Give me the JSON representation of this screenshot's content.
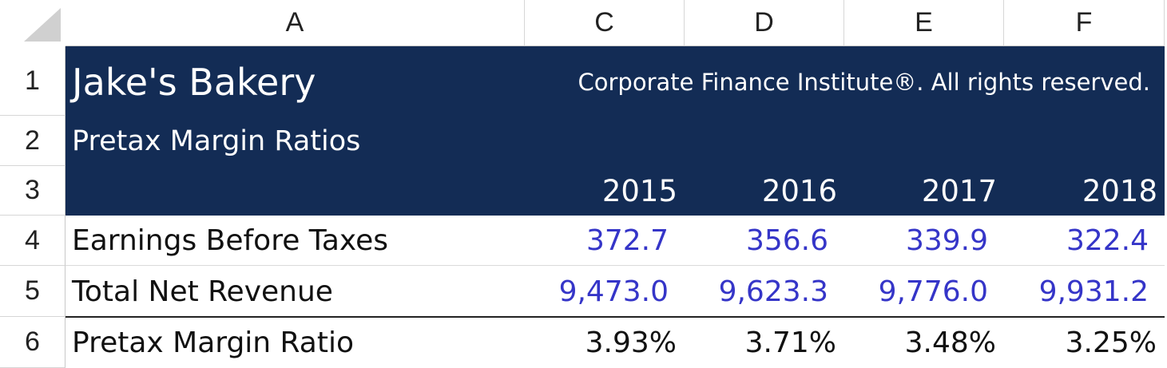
{
  "column_headers": [
    "A",
    "C",
    "D",
    "E",
    "F"
  ],
  "row_numbers": [
    "1",
    "2",
    "3",
    "4",
    "5",
    "6"
  ],
  "header": {
    "title": "Jake's Bakery",
    "subtitle": "Pretax Margin Ratios",
    "copyright": "Corporate Finance Institute®. All rights reserved."
  },
  "table": {
    "years": [
      "2015",
      "2016",
      "2017",
      "2018"
    ],
    "rows": [
      {
        "label": "Earnings Before Taxes",
        "values": [
          "372.7",
          "356.6",
          "339.9",
          "322.4"
        ]
      },
      {
        "label": "Total Net Revenue",
        "values": [
          "9,473.0",
          "9,623.3",
          "9,776.0",
          "9,931.2"
        ]
      },
      {
        "label": "Pretax Margin Ratio",
        "values": [
          "3.93%",
          "3.71%",
          "3.48%",
          "3.25%"
        ]
      }
    ]
  }
}
